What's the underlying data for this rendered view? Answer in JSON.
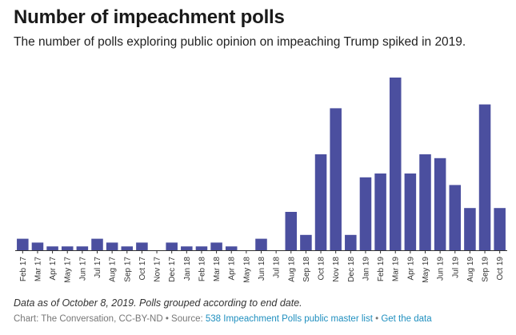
{
  "header": {
    "title": "Number of impeachment polls",
    "subtitle": "The number of polls exploring public opinion on impeaching Trump spiked in 2019."
  },
  "footer": {
    "note": "Data as of October 8, 2019. Polls grouped according to end date.",
    "credit": "Chart: The Conversation, CC-BY-ND",
    "separator1": " • Source: ",
    "source_link": "538 Impeachment Polls public master list",
    "separator2": " • ",
    "data_link": "Get the data"
  },
  "colors": {
    "bar": "#4b4f9f",
    "axis": "#333333",
    "link": "#1f8fbf"
  },
  "chart_data": {
    "type": "bar",
    "title": "Number of impeachment polls",
    "xlabel": "",
    "ylabel": "",
    "grid": false,
    "ylim": [
      0,
      46
    ],
    "categories": [
      "Feb 17",
      "Mar 17",
      "Apr 17",
      "May 17",
      "Jun 17",
      "Jul 17",
      "Aug 17",
      "Sep 17",
      "Oct 17",
      "Nov 17",
      "Dec 17",
      "Jan 18",
      "Feb 18",
      "Mar 18",
      "Apr 18",
      "May 18",
      "Jun 18",
      "Jul 18",
      "Aug 18",
      "Sep 18",
      "Oct 18",
      "Nov 18",
      "Dec 18",
      "Jan 19",
      "Feb 19",
      "Mar 19",
      "Apr 19",
      "May 19",
      "Jun 19",
      "Jul 19",
      "Aug 19",
      "Sep 19",
      "Oct 19"
    ],
    "tick_labels": [
      "Feb 17",
      "Mar 17",
      "Apr 17",
      "May 17",
      "Jun 17",
      "Jul 17",
      "Aug 17",
      "Sep 17",
      "Oct 17",
      "Nov 17",
      "Dec 17",
      "Jan 18",
      "Feb 18",
      "Mar 18",
      "Apr 18",
      "May 18",
      "Jun 18",
      "Jul 18",
      "Aug 18",
      "Sep 18",
      "Oct 18",
      "Nov 18",
      "Dec 18",
      "Jan 19",
      "Feb 19",
      "Mar 19",
      "Apr 19",
      "May 19",
      "Jun 19",
      "Jul 19",
      "Aug 19",
      "Sep 19",
      "Oct 19"
    ],
    "values": [
      3,
      2,
      1,
      1,
      1,
      3,
      2,
      1,
      2,
      0,
      2,
      1,
      1,
      2,
      1,
      0,
      3,
      0,
      10,
      4,
      25,
      37,
      4,
      19,
      20,
      45,
      20,
      25,
      24,
      17,
      11,
      38,
      11
    ]
  }
}
